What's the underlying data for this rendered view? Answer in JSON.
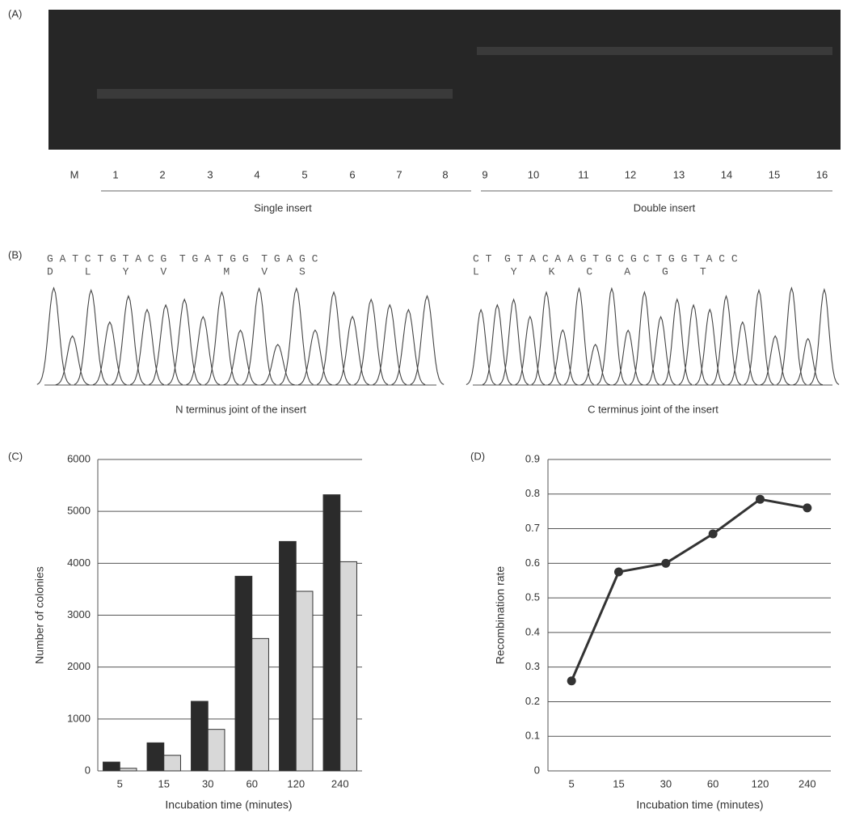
{
  "panels": {
    "a": {
      "label": "(A)",
      "lanes": [
        "M",
        "1",
        "2",
        "3",
        "4",
        "5",
        "6",
        "7",
        "8",
        "9",
        "10",
        "11",
        "12",
        "13",
        "14",
        "15",
        "16"
      ],
      "group_left": "Single insert",
      "group_right": "Double insert"
    },
    "b": {
      "label": "(B)",
      "left_bases": "G A T C T G T A C G  T G A T G G  T G A G C",
      "left_aminos": "D     L     Y     V         M     V     S",
      "left_caption": "N terminus joint of the insert",
      "right_bases": "C T  G T A C A A G T G C G C T G G T A C C",
      "right_aminos": "L     Y     K     C     A     G     T",
      "right_caption": "C terminus joint of the insert"
    }
  },
  "chart_data": [
    {
      "type": "bar",
      "panel_label": "(C)",
      "categories": [
        "5",
        "15",
        "30",
        "60",
        "120",
        "240"
      ],
      "series": [
        {
          "color": "#2b2b2b",
          "values": [
            170,
            540,
            1340,
            3750,
            4420,
            5320
          ]
        },
        {
          "color": "#d8d8d8",
          "values": [
            50,
            300,
            800,
            2550,
            3460,
            4030
          ]
        }
      ],
      "ylim": [
        0,
        6000
      ],
      "yticks": [
        0,
        1000,
        2000,
        3000,
        4000,
        5000,
        6000
      ],
      "grid": true,
      "ylabel": "Number of colonies",
      "xlabel": "Incubation time (minutes)"
    },
    {
      "type": "line",
      "panel_label": "(D)",
      "categories": [
        "5",
        "15",
        "30",
        "60",
        "120",
        "240"
      ],
      "values": [
        0.26,
        0.575,
        0.6,
        0.685,
        0.785,
        0.76
      ],
      "color": "#333333",
      "ylim": [
        0,
        0.9
      ],
      "yticks": [
        0,
        0.1,
        0.2,
        0.3,
        0.4,
        0.5,
        0.6,
        0.7,
        0.8,
        0.9
      ],
      "grid": true,
      "ylabel": "Recombination rate",
      "xlabel": "Incubation time (minutes)"
    }
  ]
}
